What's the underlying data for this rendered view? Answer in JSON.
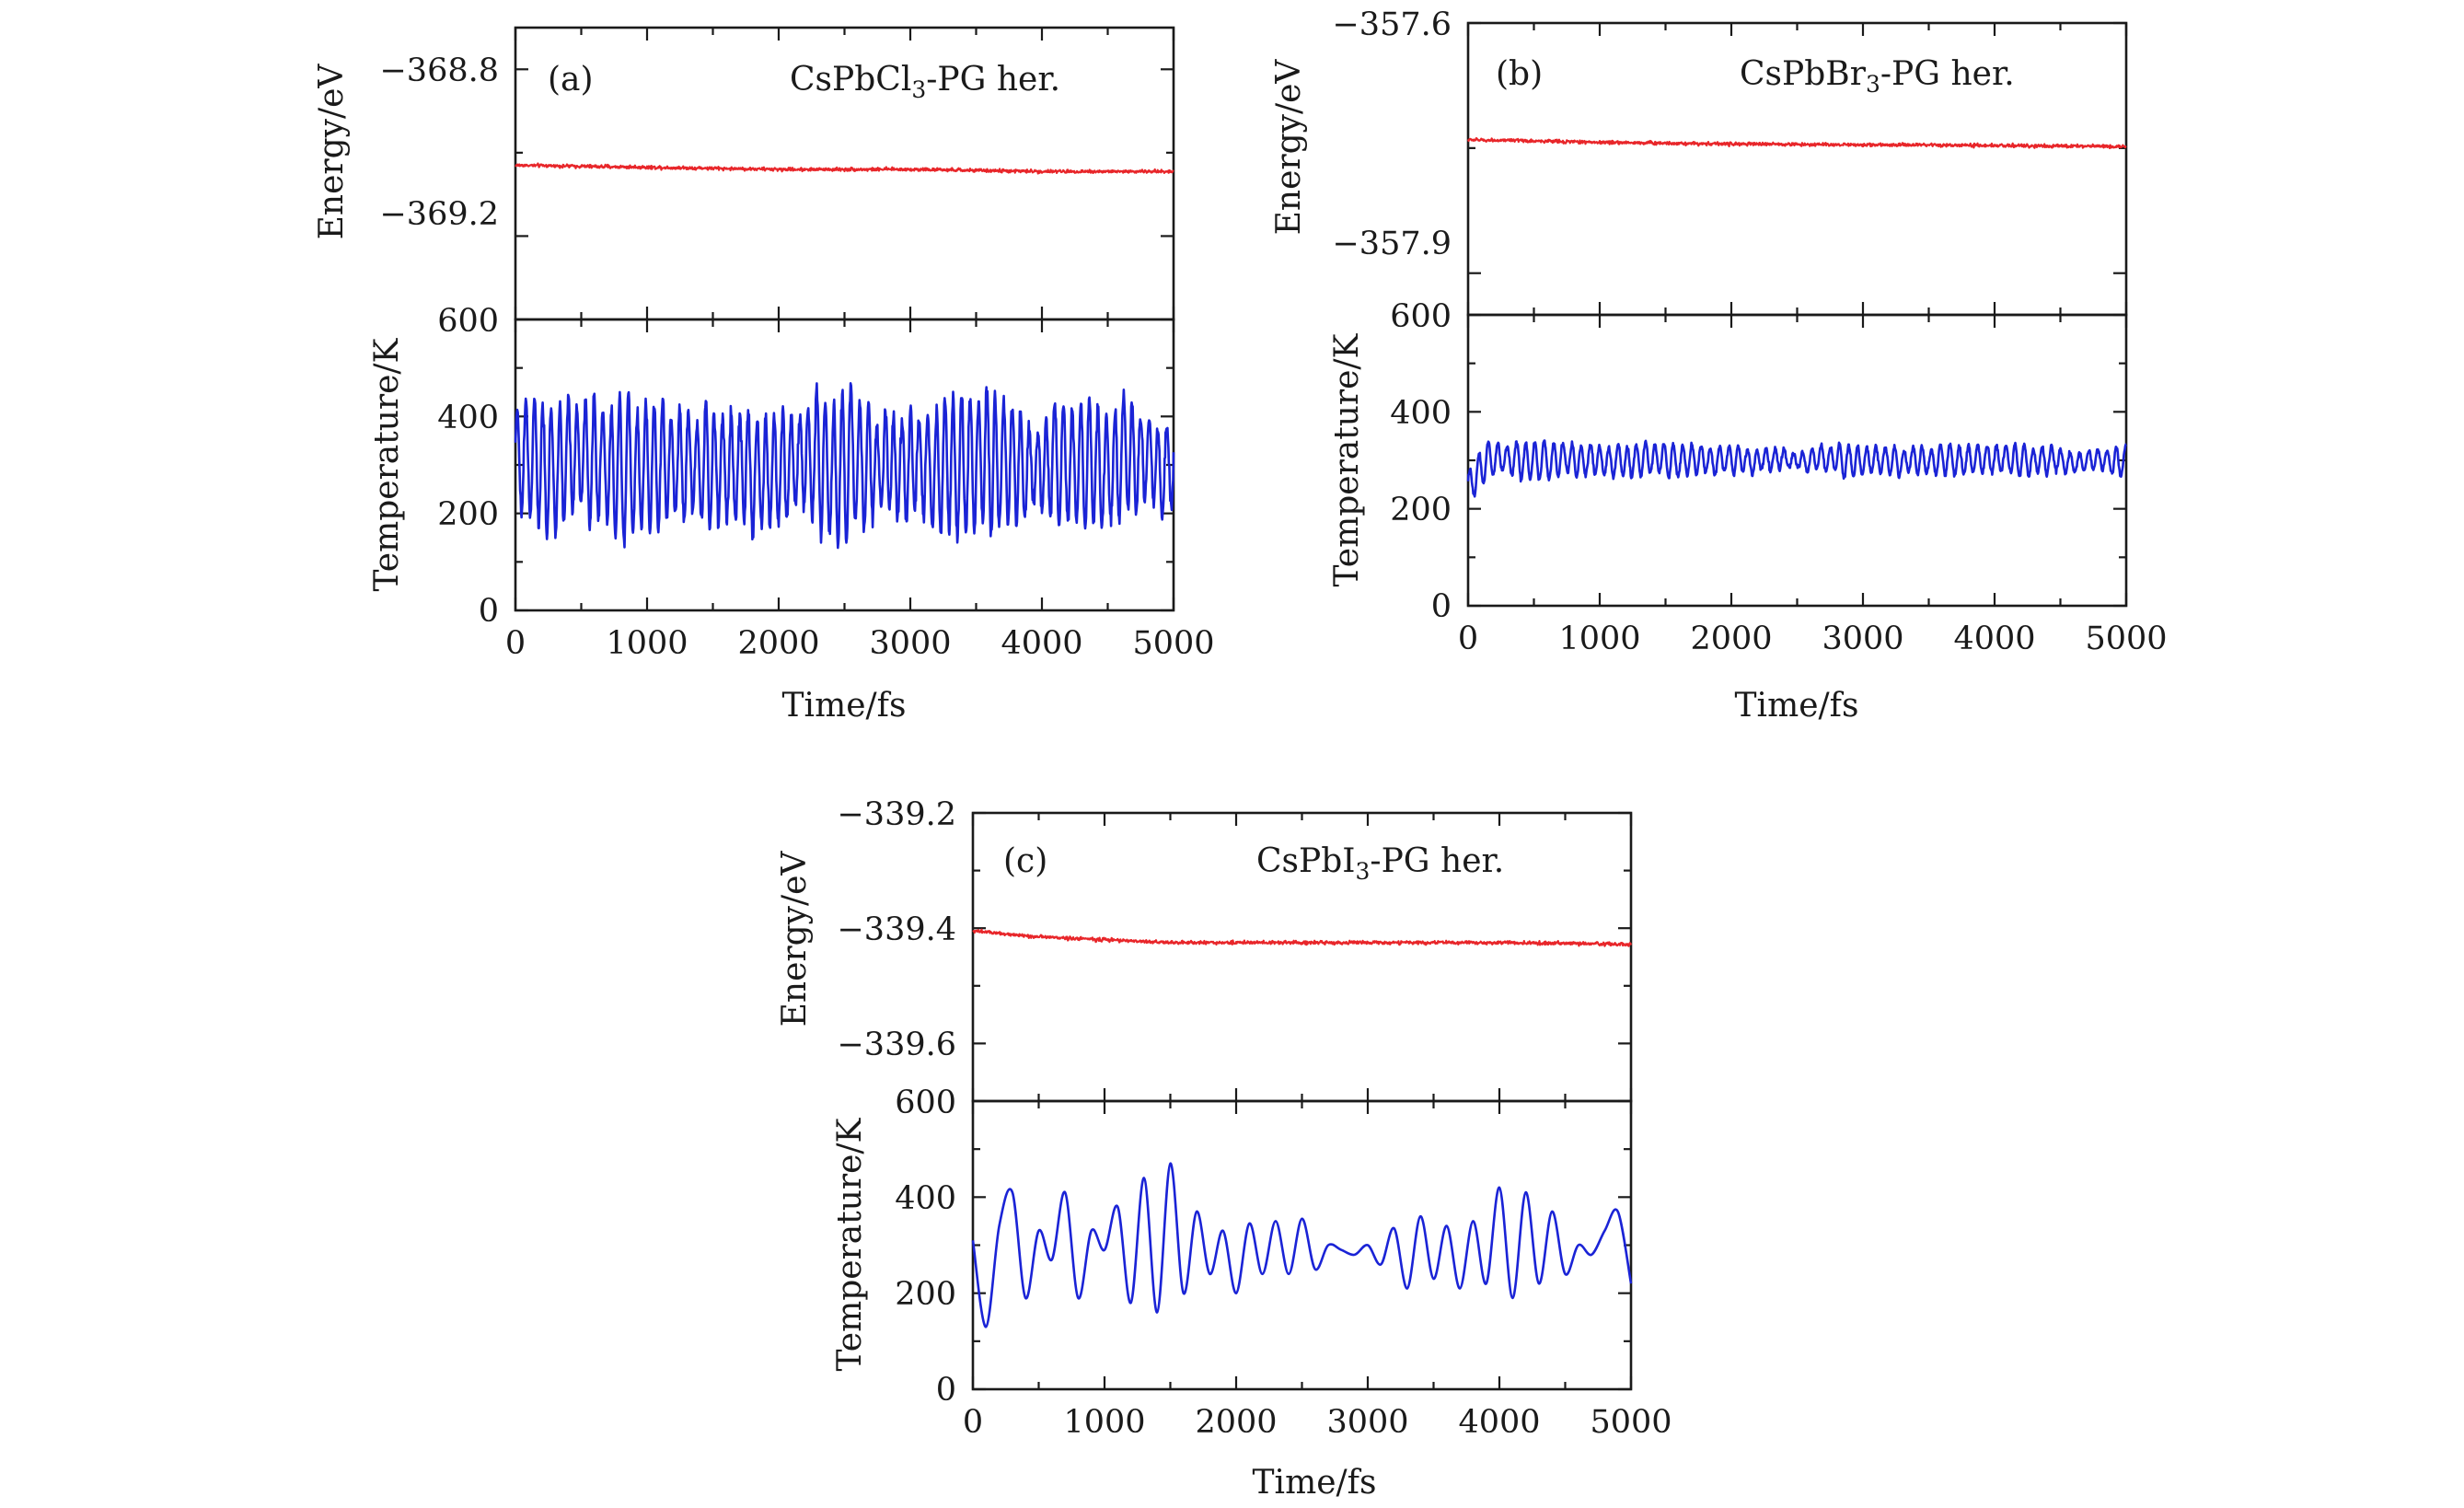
{
  "figure": {
    "panels": [
      {
        "id": "a",
        "label": "(a)",
        "title": {
          "main": "CsPbCl",
          "sub": "3",
          "rest": "-PG her."
        },
        "energy_axis_label": "Energy/eV",
        "temperature_axis_label": "Temperature/K",
        "x_axis_label": "Time/fs",
        "x_tick_labels": [
          "0",
          "1000",
          "2000",
          "3000",
          "4000",
          "5000"
        ],
        "energy_tick_labels": [
          "−368.8",
          "−369.2"
        ],
        "temperature_tick_labels": [
          "0",
          "200",
          "400",
          "600"
        ]
      },
      {
        "id": "b",
        "label": "(b)",
        "title": {
          "main": "CsPbBr",
          "sub": "3",
          "rest": "-PG her."
        },
        "energy_axis_label": "Energy/eV",
        "temperature_axis_label": "Temperature/K",
        "x_axis_label": "Time/fs",
        "x_tick_labels": [
          "0",
          "1000",
          "2000",
          "3000",
          "4000",
          "5000"
        ],
        "energy_tick_labels": [
          "−357.6",
          "−357.9"
        ],
        "temperature_tick_labels": [
          "0",
          "200",
          "400",
          "600"
        ]
      },
      {
        "id": "c",
        "label": "(c)",
        "title": {
          "main": "CsPbI",
          "sub": "3",
          "rest": "-PG her."
        },
        "energy_axis_label": "Energy/eV",
        "temperature_axis_label": "Temperature/K",
        "x_axis_label": "Time/fs",
        "x_tick_labels": [
          "0",
          "1000",
          "2000",
          "3000",
          "4000",
          "5000"
        ],
        "energy_tick_labels": [
          "−339.2",
          "−339.4",
          "−339.6"
        ],
        "temperature_tick_labels": [
          "0",
          "200",
          "400",
          "600"
        ]
      }
    ]
  },
  "chart_data": [
    {
      "type": "line",
      "panel": "a-energy",
      "title": "CsPbCl3-PG her.",
      "xlabel": "Time/fs",
      "ylabel": "Energy/eV",
      "xlim": [
        0,
        5000
      ],
      "ylim": [
        -369.4,
        -368.7
      ],
      "yticks": [
        -368.8,
        -369.2
      ],
      "color": "#e8262a",
      "series": [
        {
          "x": [
            0,
            1000,
            2000,
            3000,
            4000,
            5000
          ],
          "values": [
            -369.03,
            -369.035,
            -369.04,
            -369.04,
            -369.045,
            -369.045
          ],
          "noise": 0.004
        }
      ]
    },
    {
      "type": "line",
      "panel": "a-temperature",
      "xlabel": "Time/fs",
      "ylabel": "Temperature/K",
      "xlim": [
        0,
        5000
      ],
      "ylim": [
        0,
        600
      ],
      "yticks": [
        0,
        200,
        400,
        600
      ],
      "color": "#1a23d6",
      "series": [
        {
          "x": [
            0,
            5000
          ],
          "mean": 300,
          "amplitude": 110,
          "period_fs": 65
        }
      ]
    },
    {
      "type": "line",
      "panel": "b-energy",
      "title": "CsPbBr3-PG her.",
      "xlabel": "Time/fs",
      "ylabel": "Energy/eV",
      "xlim": [
        0,
        5000
      ],
      "ylim": [
        -357.95,
        -357.6
      ],
      "yticks": [
        -357.6,
        -357.9
      ],
      "color": "#e8262a",
      "series": [
        {
          "x": [
            0,
            1000,
            2000,
            3000,
            4000,
            5000
          ],
          "values": [
            -357.74,
            -357.743,
            -357.745,
            -357.746,
            -357.747,
            -357.748
          ],
          "noise": 0.002
        }
      ]
    },
    {
      "type": "line",
      "panel": "b-temperature",
      "xlabel": "Time/fs",
      "ylabel": "Temperature/K",
      "xlim": [
        0,
        5000
      ],
      "ylim": [
        0,
        600
      ],
      "yticks": [
        0,
        200,
        400,
        600
      ],
      "color": "#1a23d6",
      "series": [
        {
          "x": [
            0,
            5000
          ],
          "mean": 300,
          "amplitude": 30,
          "period_fs": 70
        }
      ]
    },
    {
      "type": "line",
      "panel": "c-energy",
      "title": "CsPbI3-PG her.",
      "xlabel": "Time/fs",
      "ylabel": "Energy/eV",
      "xlim": [
        0,
        5000
      ],
      "ylim": [
        -339.7,
        -339.2
      ],
      "yticks": [
        -339.2,
        -339.4,
        -339.6
      ],
      "color": "#e8262a",
      "series": [
        {
          "x": [
            0,
            500,
            1000,
            1500,
            2000,
            3000,
            4000,
            5000
          ],
          "values": [
            -339.405,
            -339.415,
            -339.42,
            -339.425,
            -339.425,
            -339.425,
            -339.425,
            -339.428
          ],
          "noise": 0.003
        }
      ]
    },
    {
      "type": "line",
      "panel": "c-temperature",
      "xlabel": "Time/fs",
      "ylabel": "Temperature/K",
      "xlim": [
        0,
        5000
      ],
      "ylim": [
        0,
        600
      ],
      "yticks": [
        0,
        200,
        400,
        600
      ],
      "color": "#1a23d6",
      "series": [
        {
          "x": [
            0,
            100,
            200,
            300,
            400,
            500,
            600,
            700,
            800,
            900,
            1000,
            1100,
            1200,
            1300,
            1400,
            1500,
            1600,
            1700,
            1800,
            1900,
            2000,
            2100,
            2200,
            2300,
            2400,
            2500,
            2600,
            2700,
            2800,
            2900,
            3000,
            3100,
            3200,
            3300,
            3400,
            3500,
            3600,
            3700,
            3800,
            3900,
            4000,
            4100,
            4200,
            4300,
            4400,
            4500,
            4600,
            4700,
            4800,
            4900,
            5000
          ],
          "values": [
            310,
            130,
            340,
            410,
            190,
            330,
            270,
            410,
            190,
            330,
            290,
            380,
            180,
            440,
            160,
            470,
            200,
            370,
            240,
            330,
            200,
            345,
            240,
            350,
            240,
            355,
            250,
            300,
            290,
            280,
            300,
            260,
            335,
            210,
            360,
            230,
            340,
            210,
            350,
            220,
            420,
            190,
            410,
            220,
            370,
            240,
            300,
            280,
            330,
            370,
            220
          ]
        }
      ]
    }
  ]
}
